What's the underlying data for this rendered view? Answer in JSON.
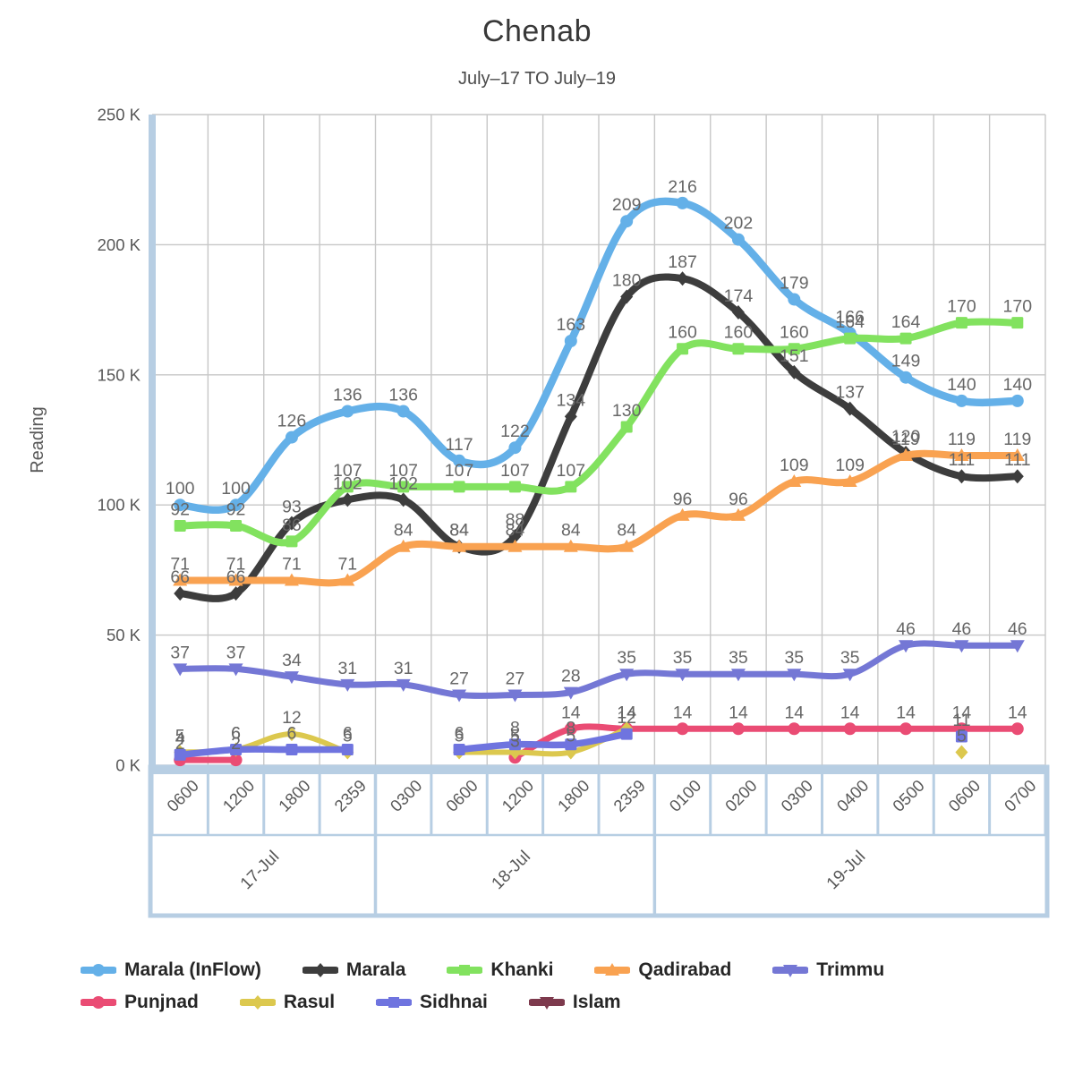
{
  "header": {
    "title": "Chenab",
    "subtitle": "July–17 TO July–19"
  },
  "colors": {
    "band": "#b7cee3",
    "grid": "#c7c7c7",
    "data_label": "#676767",
    "axis_text": "#585858",
    "title": "#383838",
    "subtitle": "#4a4a4a",
    "legend_text": "#262626"
  },
  "chart_data": {
    "type": "line",
    "title": "Chenab",
    "subtitle": "July–17 TO July–19",
    "ylabel": "Reading",
    "xlabel": "",
    "ylim": [
      0,
      250
    ],
    "y_ticks": [
      "250 K",
      "200 K",
      "150 K",
      "100 K",
      "50 K",
      "0 K"
    ],
    "grid": true,
    "legend_position": "bottom",
    "x": [
      "0600",
      "1200",
      "1800",
      "2359",
      "0300",
      "0600",
      "1200",
      "1800",
      "2359",
      "0100",
      "0200",
      "0300",
      "0400",
      "0500",
      "0600",
      "0700"
    ],
    "date_groups": [
      {
        "label": "17-Jul",
        "span": [
          0,
          3
        ]
      },
      {
        "label": "18-Jul",
        "span": [
          4,
          8
        ]
      },
      {
        "label": "19-Jul",
        "span": [
          9,
          15
        ]
      }
    ],
    "series": [
      {
        "name": "Marala (InFlow)",
        "color": "#64b0e8",
        "marker": "circle",
        "values": [
          100,
          100,
          126,
          136,
          136,
          117,
          122,
          163,
          209,
          216,
          202,
          179,
          166,
          149,
          140,
          140
        ]
      },
      {
        "name": "Marala",
        "color": "#3d3d3d",
        "marker": "diamond",
        "values": [
          66,
          66,
          93,
          102,
          102,
          84,
          88,
          134,
          180,
          187,
          174,
          151,
          137,
          120,
          111,
          111
        ]
      },
      {
        "name": "Khanki",
        "color": "#82e25f",
        "marker": "square",
        "values": [
          92,
          92,
          86,
          107,
          107,
          107,
          107,
          107,
          130,
          160,
          160,
          160,
          164,
          164,
          170,
          170
        ]
      },
      {
        "name": "Qadirabad",
        "color": "#f9a251",
        "marker": "triangle-up",
        "values": [
          71,
          71,
          71,
          71,
          84,
          84,
          84,
          84,
          84,
          96,
          96,
          109,
          109,
          119,
          119,
          119
        ]
      },
      {
        "name": "Trimmu",
        "color": "#7477d5",
        "marker": "triangle-down",
        "values": [
          37,
          37,
          34,
          31,
          31,
          27,
          27,
          28,
          35,
          35,
          35,
          35,
          35,
          46,
          46,
          46
        ]
      },
      {
        "name": "Punjnad",
        "color": "#ea4c74",
        "marker": "circle",
        "values": [
          2,
          2,
          null,
          null,
          null,
          null,
          3,
          14,
          14,
          14,
          14,
          14,
          14,
          14,
          14,
          14
        ]
      },
      {
        "name": "Rasul",
        "color": "#dcc84e",
        "marker": "diamond",
        "values": [
          5,
          6,
          12,
          5,
          null,
          5,
          5,
          5,
          14,
          null,
          null,
          null,
          null,
          null,
          5,
          null
        ]
      },
      {
        "name": "Sidhnai",
        "color": "#6f74df",
        "marker": "square",
        "values": [
          4,
          6,
          6,
          6,
          null,
          6,
          8,
          8,
          12,
          null,
          null,
          null,
          null,
          null,
          11,
          null
        ]
      },
      {
        "name": "Islam",
        "color": "#7d3a4d",
        "marker": "triangle-down",
        "values": [
          null,
          null,
          null,
          null,
          null,
          null,
          null,
          null,
          null,
          null,
          null,
          null,
          null,
          null,
          null,
          null
        ]
      }
    ]
  }
}
